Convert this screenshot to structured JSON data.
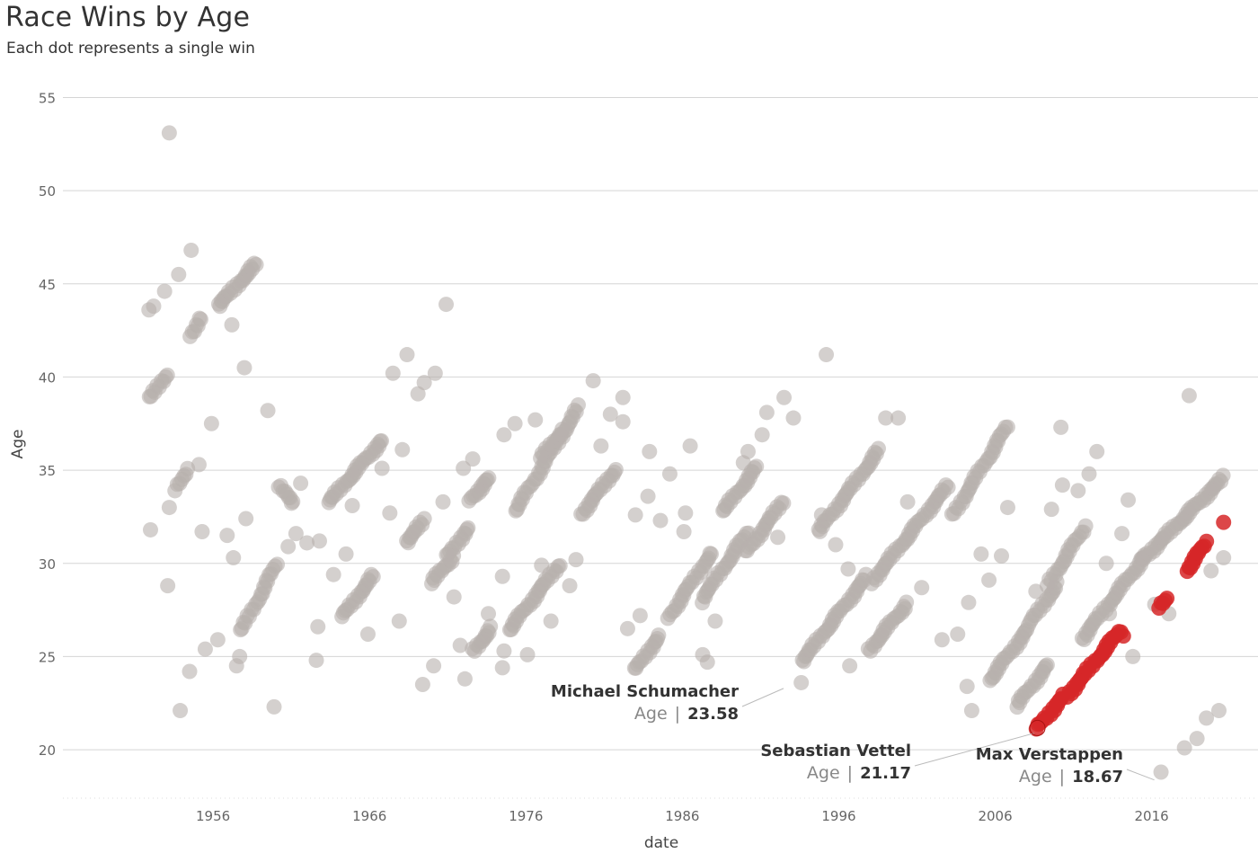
{
  "chart_data": {
    "type": "scatter",
    "title": "Race Wins by Age",
    "subtitle": "Each dot represents a single win",
    "xlabel": "date",
    "ylabel": "Age",
    "x_ticks": [
      "1956",
      "1966",
      "1976",
      "1986",
      "1996",
      "2006",
      "2016"
    ],
    "y_ticks": [
      20,
      25,
      30,
      35,
      40,
      45,
      50,
      55
    ],
    "xlim": [
      1946.4,
      2022.8
    ],
    "ylim": [
      17.4,
      55.6
    ],
    "grid": "horizontal",
    "colors": {
      "default": "#b8b0ae",
      "highlight": "#d62728",
      "grid": "#d5d5d5"
    },
    "annotations": [
      {
        "driver": "Michael Schumacher",
        "label": "Age",
        "separator": "|",
        "value": "23.58",
        "year": 1992.7,
        "age": 23.58
      },
      {
        "driver": "Sebastian Vettel",
        "label": "Age",
        "separator": "|",
        "value": "21.17",
        "year": 2008.7,
        "age": 21.17
      },
      {
        "driver": "Max Verstappen",
        "label": "Age",
        "separator": "|",
        "value": "18.67",
        "year": 2016.4,
        "age": 18.67
      }
    ],
    "highlight_series": [
      {
        "name": "Max Verstappen",
        "segments": [
          [
            2008.7,
            21.2,
            2010.4,
            22.9
          ],
          [
            2010.6,
            22.9,
            2014.0,
            26.4
          ],
          [
            2016.5,
            27.7,
            2016.9,
            28.1
          ],
          [
            2018.2,
            29.6,
            2019.5,
            31.1
          ]
        ],
        "singles": [
          [
            2020.6,
            32.2
          ],
          [
            2014.2,
            26.1
          ]
        ]
      }
    ],
    "driver_series": [
      {
        "segments": [
          [
            1956.3,
            43.8,
            1958.8,
            46.1
          ],
          [
            1954.5,
            42.2,
            1955.2,
            43.2
          ],
          [
            1952.0,
            38.9,
            1953.0,
            40.1
          ],
          [
            1953.6,
            34.0,
            1954.3,
            35.0
          ]
        ],
        "singles": [
          [
            1952.0,
            31.8
          ],
          [
            1951.9,
            43.6
          ],
          [
            1952.2,
            43.8
          ],
          [
            1953.2,
            53.1
          ],
          [
            1952.9,
            44.6
          ],
          [
            1953.8,
            45.5
          ],
          [
            1954.6,
            46.8
          ],
          [
            1954.5,
            24.2
          ],
          [
            1953.9,
            22.1
          ],
          [
            1955.1,
            35.3
          ],
          [
            1955.9,
            37.5
          ],
          [
            1957.2,
            42.8
          ],
          [
            1958.0,
            40.5
          ],
          [
            1955.5,
            25.4
          ],
          [
            1955.3,
            31.7
          ],
          [
            1953.1,
            28.8
          ],
          [
            1956.3,
            25.9
          ],
          [
            1956.9,
            31.5
          ],
          [
            1957.3,
            30.3
          ],
          [
            1953.2,
            33.0
          ]
        ]
      },
      {
        "segments": [
          [
            1957.8,
            26.4,
            1960.1,
            30.0
          ],
          [
            1960.2,
            34.2,
            1961.1,
            33.2
          ],
          [
            1964.3,
            27.2,
            1966.3,
            29.4
          ],
          [
            1963.4,
            33.3,
            1966.8,
            36.6
          ]
        ],
        "singles": [
          [
            1957.7,
            25.0
          ],
          [
            1958.1,
            32.4
          ],
          [
            1959.5,
            38.2
          ],
          [
            1959.9,
            22.3
          ],
          [
            1960.8,
            30.9
          ],
          [
            1961.3,
            31.6
          ],
          [
            1961.6,
            34.3
          ],
          [
            1962.0,
            31.1
          ],
          [
            1962.7,
            26.6
          ],
          [
            1962.6,
            24.8
          ],
          [
            1962.8,
            31.2
          ],
          [
            1963.7,
            29.4
          ],
          [
            1964.5,
            30.5
          ],
          [
            1964.9,
            33.1
          ],
          [
            1965.9,
            26.2
          ],
          [
            1966.8,
            35.1
          ],
          [
            1957.5,
            24.5
          ]
        ]
      },
      {
        "segments": [
          [
            1968.3,
            31.1,
            1969.5,
            32.3
          ],
          [
            1970.0,
            29.0,
            1971.3,
            30.3
          ],
          [
            1971.0,
            30.4,
            1972.3,
            31.9
          ],
          [
            1972.4,
            33.4,
            1973.7,
            34.6
          ],
          [
            1972.6,
            25.3,
            1973.8,
            26.5
          ]
        ],
        "singles": [
          [
            1967.5,
            40.2
          ],
          [
            1968.1,
            36.1
          ],
          [
            1968.4,
            41.2
          ],
          [
            1969.1,
            39.1
          ],
          [
            1969.5,
            39.7
          ],
          [
            1970.2,
            40.2
          ],
          [
            1970.9,
            43.9
          ],
          [
            1967.9,
            26.9
          ],
          [
            1967.3,
            32.7
          ],
          [
            1969.4,
            23.5
          ],
          [
            1970.1,
            24.5
          ],
          [
            1970.7,
            33.3
          ],
          [
            1971.4,
            28.2
          ],
          [
            1972.1,
            23.8
          ],
          [
            1972.0,
            35.1
          ],
          [
            1972.6,
            35.6
          ],
          [
            1971.8,
            25.6
          ],
          [
            1974.5,
            29.3
          ],
          [
            1974.6,
            25.3
          ],
          [
            1973.6,
            27.3
          ]
        ]
      },
      {
        "segments": [
          [
            1974.9,
            26.4,
            1978.1,
            29.9
          ],
          [
            1975.3,
            32.8,
            1979.4,
            38.4
          ],
          [
            1979.5,
            32.6,
            1981.7,
            35.0
          ],
          [
            1977.0,
            35.7,
            1978.3,
            37.1
          ]
        ],
        "singles": [
          [
            1974.6,
            36.9
          ],
          [
            1974.5,
            24.4
          ],
          [
            1975.3,
            37.5
          ],
          [
            1976.1,
            25.1
          ],
          [
            1976.6,
            37.7
          ],
          [
            1977.0,
            29.9
          ],
          [
            1977.6,
            26.9
          ],
          [
            1978.8,
            28.8
          ],
          [
            1979.2,
            30.2
          ],
          [
            1980.3,
            39.8
          ],
          [
            1980.8,
            36.3
          ],
          [
            1981.4,
            38.0
          ],
          [
            1982.2,
            38.9
          ],
          [
            1982.5,
            26.5
          ],
          [
            1983.3,
            27.2
          ],
          [
            1983.0,
            32.6
          ],
          [
            1982.2,
            37.6
          ]
        ]
      },
      {
        "segments": [
          [
            1983.0,
            24.3,
            1984.5,
            26.1
          ],
          [
            1985.1,
            27.1,
            1987.9,
            30.6
          ],
          [
            1987.2,
            28.0,
            1990.2,
            31.7
          ],
          [
            1988.6,
            32.8,
            1990.8,
            35.2
          ],
          [
            1990.1,
            30.6,
            1992.4,
            33.3
          ]
        ],
        "singles": [
          [
            1983.8,
            33.6
          ],
          [
            1983.9,
            36.0
          ],
          [
            1984.6,
            32.3
          ],
          [
            1985.2,
            34.8
          ],
          [
            1986.1,
            31.7
          ],
          [
            1986.2,
            32.7
          ],
          [
            1986.5,
            36.3
          ],
          [
            1987.3,
            25.1
          ],
          [
            1987.6,
            24.7
          ],
          [
            1988.1,
            26.9
          ],
          [
            1989.9,
            35.4
          ],
          [
            1990.2,
            36.0
          ],
          [
            1991.1,
            36.9
          ],
          [
            1991.4,
            38.1
          ],
          [
            1992.5,
            38.9
          ],
          [
            1992.1,
            31.4
          ],
          [
            1993.1,
            37.8
          ]
        ]
      },
      {
        "segments": [
          [
            1993.6,
            24.7,
            1997.8,
            29.3
          ],
          [
            1994.7,
            31.7,
            1998.6,
            36.1
          ],
          [
            1997.9,
            25.3,
            2000.3,
            27.8
          ],
          [
            1998.1,
            29.0,
            2003.0,
            34.2
          ],
          [
            2003.3,
            32.6,
            2006.8,
            37.4
          ]
        ],
        "singles": [
          [
            1993.6,
            23.6
          ],
          [
            1994.9,
            32.6
          ],
          [
            1995.2,
            41.2
          ],
          [
            1995.8,
            31.0
          ],
          [
            1996.7,
            24.5
          ],
          [
            1996.6,
            29.7
          ],
          [
            1999.0,
            37.8
          ],
          [
            1999.8,
            37.8
          ],
          [
            2000.4,
            33.3
          ],
          [
            2001.3,
            28.7
          ],
          [
            2002.6,
            25.9
          ],
          [
            2003.6,
            26.2
          ],
          [
            2004.2,
            23.4
          ],
          [
            2004.5,
            22.1
          ],
          [
            2004.3,
            27.9
          ],
          [
            2005.1,
            30.5
          ],
          [
            2005.6,
            29.1
          ]
        ]
      },
      {
        "segments": [
          [
            2005.6,
            23.7,
            2008.2,
            26.6
          ],
          [
            2007.4,
            22.4,
            2009.4,
            24.6
          ],
          [
            2008.3,
            26.9,
            2010.0,
            28.9
          ],
          [
            2009.4,
            28.9,
            2011.7,
            31.9
          ],
          [
            2011.5,
            25.9,
            2015.6,
            30.4
          ],
          [
            2015.4,
            30.2,
            2020.6,
            34.6
          ]
        ],
        "singles": [
          [
            2006.4,
            30.4
          ],
          [
            2006.8,
            33.0
          ],
          [
            2008.6,
            28.5
          ],
          [
            2009.6,
            32.9
          ],
          [
            2010.3,
            34.2
          ],
          [
            2010.2,
            37.3
          ],
          [
            2011.3,
            33.9
          ],
          [
            2012.0,
            34.8
          ],
          [
            2012.5,
            36.0
          ],
          [
            2013.1,
            30.0
          ],
          [
            2014.1,
            31.6
          ],
          [
            2014.5,
            33.4
          ],
          [
            2014.8,
            25.0
          ],
          [
            2016.2,
            27.8
          ],
          [
            2017.1,
            27.3
          ],
          [
            2018.4,
            39.0
          ],
          [
            2018.1,
            20.1
          ],
          [
            2019.5,
            21.7
          ],
          [
            2020.3,
            22.1
          ],
          [
            2019.8,
            29.6
          ],
          [
            2020.6,
            30.3
          ],
          [
            2016.6,
            18.8
          ],
          [
            2018.9,
            20.6
          ],
          [
            2013.3,
            27.3
          ]
        ]
      }
    ]
  }
}
